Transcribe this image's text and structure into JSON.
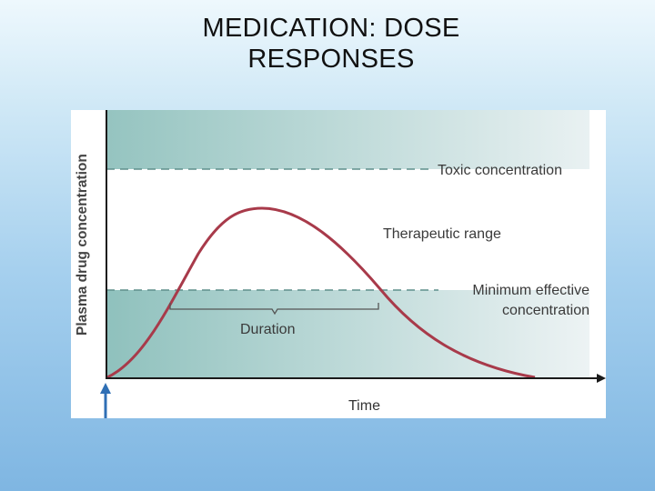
{
  "slide": {
    "title_line1": "MEDICATION: DOSE",
    "title_line2": "RESPONSES"
  },
  "diagram": {
    "y_axis_label": "Plasma drug concentration",
    "x_axis_label": "Time",
    "toxic_label": "Toxic concentration",
    "therapeutic_label": "Therapeutic range",
    "min_effective_label_line1": "Minimum effective",
    "min_effective_label_line2": "concentration",
    "duration_label": "Duration",
    "dose_marker": "dose-arrow-icon",
    "colors": {
      "curve": "#a83a4a",
      "band": "#8fc1bd",
      "threshold_line": "#5f8f8c",
      "axis": "#1a1a1a",
      "arrow": "#2f6fb5",
      "text": "#3a3a3a"
    }
  }
}
